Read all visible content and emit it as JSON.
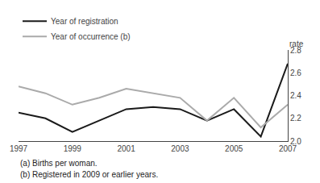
{
  "chart_data": {
    "type": "line",
    "x": [
      1997,
      1998,
      1999,
      2000,
      2001,
      2002,
      2003,
      2004,
      2005,
      2006,
      2007
    ],
    "series": [
      {
        "name": "Year of registration",
        "color": "#1a1a1a",
        "values": [
          2.25,
          2.2,
          2.08,
          2.18,
          2.28,
          2.3,
          2.28,
          2.18,
          2.28,
          2.04,
          2.68
        ]
      },
      {
        "name": "Year of occurrence (b)",
        "color": "#aaaaaa",
        "values": [
          2.48,
          2.42,
          2.32,
          2.38,
          2.46,
          2.42,
          2.38,
          2.18,
          2.38,
          2.12,
          2.32
        ]
      }
    ],
    "xlim": [
      1997,
      2007
    ],
    "xticks": [
      1997,
      1999,
      2001,
      2003,
      2005,
      2007
    ],
    "ylim": [
      2.0,
      2.8
    ],
    "yticks": [
      {
        "value": 2.0,
        "label": "2.0"
      },
      2.2,
      2.4,
      2.6,
      2.8
    ],
    "ylabel": "rate",
    "annotations": [
      "(a) Births per woman.",
      "(b) Registered in 2009 or earlier years."
    ],
    "legend": "upper left",
    "grid": false
  }
}
